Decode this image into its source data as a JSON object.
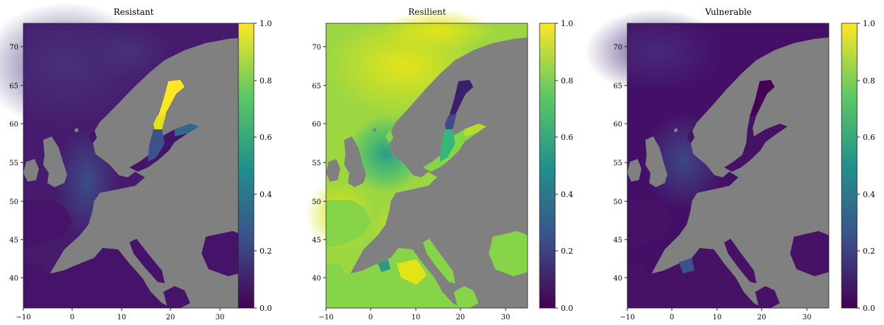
{
  "panels": [
    {
      "title": "Resistant",
      "x_ticks": [
        "−10",
        "0",
        "10",
        "20",
        "30"
      ],
      "y_ticks": [
        "40",
        "45",
        "50",
        "55",
        "60",
        "65",
        "70"
      ],
      "colorbar_ticks": [
        "0.0",
        "0.2",
        "0.4",
        "0.6",
        "0.8",
        "1.0"
      ]
    },
    {
      "title": "Resilient",
      "x_ticks": [
        "−10",
        "0",
        "10",
        "20",
        "30"
      ],
      "y_ticks": [
        "40",
        "45",
        "50",
        "55",
        "60",
        "65",
        "70"
      ],
      "colorbar_ticks": [
        "0.0",
        "0.2",
        "0.4",
        "0.6",
        "0.8",
        "1.0"
      ]
    },
    {
      "title": "Vulnerable",
      "x_ticks": [
        "−10",
        "0",
        "10",
        "20",
        "30"
      ],
      "y_ticks": [
        "40",
        "45",
        "50",
        "55",
        "60",
        "65",
        "70"
      ],
      "colorbar_ticks": [
        "0.0",
        "0.2",
        "0.4",
        "0.6",
        "0.8",
        "1.0"
      ]
    }
  ],
  "colors": {
    "land": "#808080",
    "colormap": "viridis",
    "viridis_stops": [
      "#440154",
      "#3b528b",
      "#21918c",
      "#5ec962",
      "#fde725"
    ]
  }
}
